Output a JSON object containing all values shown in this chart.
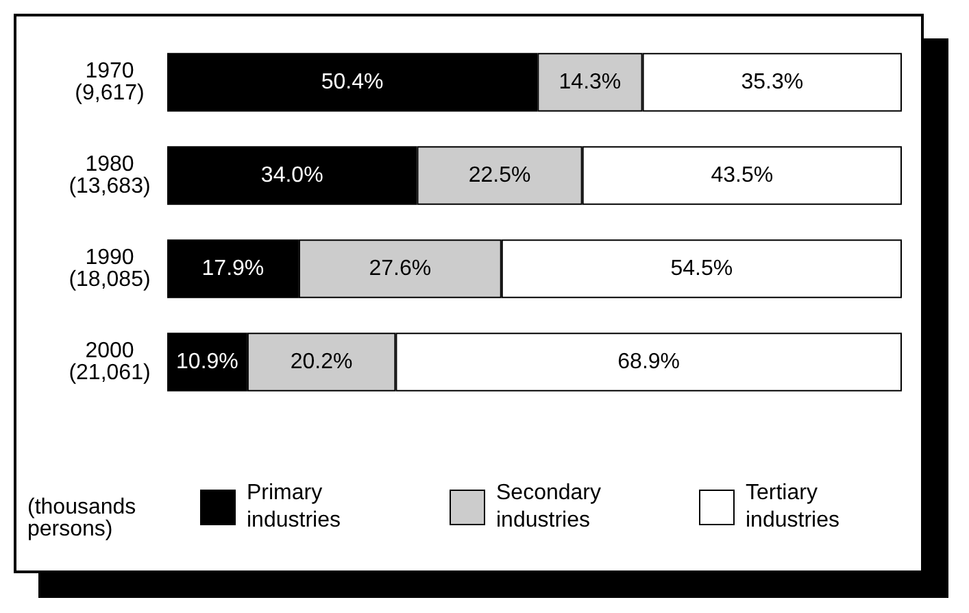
{
  "chart_data": {
    "type": "bar",
    "orientation": "horizontal",
    "stacked": true,
    "categories": [
      "1970\n(9,617)",
      "1980\n(13,683)",
      "1990\n(18,085)",
      "2000\n(21,061)"
    ],
    "xlim": [
      0,
      100
    ],
    "tick_labels": "y",
    "grid": false,
    "legend": "bottom",
    "annotations": [
      "(thousands\npersons)"
    ],
    "series": [
      {
        "name": "Primary industries",
        "color": "#000000",
        "values": [
          50.4,
          34.0,
          17.9,
          10.9
        ],
        "value_labels": [
          "50.4%",
          "34.0%",
          "17.9%",
          "10.9%"
        ]
      },
      {
        "name": "Secondary industries",
        "color": "#cccccc",
        "values": [
          14.3,
          22.5,
          27.6,
          20.2
        ],
        "value_labels": [
          "14.3%",
          "22.5%",
          "27.6%",
          "20.2%"
        ]
      },
      {
        "name": "Tertiary industries",
        "color": "#ffffff",
        "values": [
          35.3,
          43.5,
          54.5,
          68.9
        ],
        "value_labels": [
          "35.3%",
          "43.5%",
          "54.5%",
          "68.9%"
        ]
      }
    ]
  }
}
